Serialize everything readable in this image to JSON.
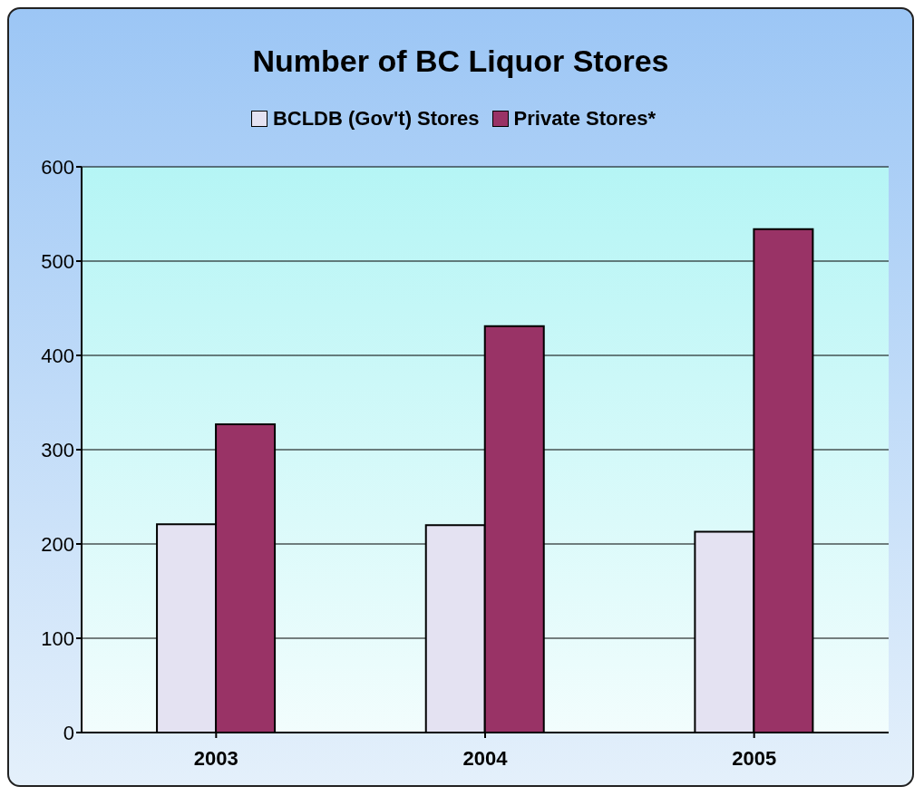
{
  "chart_data": {
    "type": "bar",
    "title": "Number of BC Liquor Stores",
    "categories": [
      "2003",
      "2004",
      "2005"
    ],
    "series": [
      {
        "name": "BCLDB (Gov't) Stores",
        "color": "#e4e2f2",
        "values": [
          221,
          220,
          213
        ]
      },
      {
        "name": "Private Stores*",
        "color": "#993366",
        "values": [
          327,
          431,
          534
        ]
      }
    ],
    "ylim": [
      0,
      600
    ],
    "yticks": [
      0,
      100,
      200,
      300,
      400,
      500,
      600
    ],
    "grid": "y",
    "legend": "top"
  }
}
